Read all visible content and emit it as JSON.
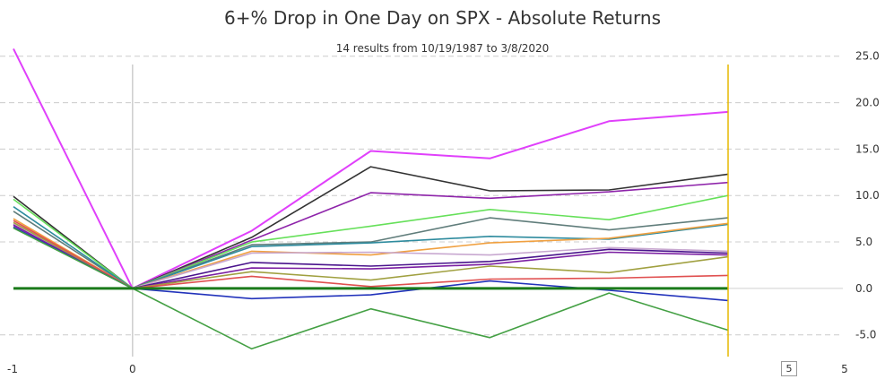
{
  "chart_data": {
    "type": "line",
    "title": "6+% Drop in One Day on SPX - Absolute Returns",
    "subtitle": "14 results from 10/19/1987 to 3/8/2020",
    "x": [
      -1,
      0,
      1,
      2,
      3,
      4,
      5
    ],
    "x_ticks": [
      "-1",
      "0",
      "5"
    ],
    "y_ticks": [
      "25.0",
      "20.0",
      "15.0",
      "10.0",
      "5.0",
      "0.0",
      "-5.0"
    ],
    "ylim": [
      -8.5,
      27
    ],
    "grid": "horizontal-dashed",
    "marker_x": 5,
    "series": [
      {
        "color": "#e040fb",
        "values": [
          25.8,
          0,
          6.2,
          14.8,
          14.0,
          18.0,
          19.0
        ]
      },
      {
        "color": "#333333",
        "values": [
          9.9,
          0,
          5.5,
          13.1,
          10.5,
          10.6,
          12.3
        ]
      },
      {
        "color": "#8e24aa",
        "values": [
          6.9,
          0,
          5.2,
          10.3,
          9.7,
          10.4,
          11.4
        ]
      },
      {
        "color": "#66e05a",
        "values": [
          9.6,
          0,
          5.0,
          6.7,
          8.5,
          7.4,
          10.0
        ]
      },
      {
        "color": "#607d7b",
        "values": [
          8.3,
          0,
          4.7,
          5.0,
          7.6,
          6.3,
          7.6
        ]
      },
      {
        "color": "#2e8b9e",
        "values": [
          8.8,
          0,
          4.5,
          4.9,
          5.6,
          5.3,
          6.9
        ]
      },
      {
        "color": "#f0a040",
        "values": [
          7.5,
          0,
          4.0,
          3.6,
          4.9,
          5.4,
          7.0
        ]
      },
      {
        "color": "#c8a8d0",
        "values": [
          7.0,
          0,
          3.8,
          3.9,
          3.6,
          4.4,
          4.0
        ]
      },
      {
        "color": "#4a148c",
        "values": [
          6.6,
          0,
          2.8,
          2.4,
          2.9,
          4.2,
          3.8
        ]
      },
      {
        "color": "#7b1fa2",
        "values": [
          6.8,
          0,
          2.2,
          2.1,
          2.6,
          3.9,
          3.6
        ]
      },
      {
        "color": "#a0a040",
        "values": [
          7.1,
          0,
          1.8,
          0.9,
          2.4,
          1.7,
          3.4
        ]
      },
      {
        "color": "#e05050",
        "values": [
          7.3,
          0,
          1.3,
          0.2,
          1.0,
          1.1,
          1.4
        ]
      },
      {
        "color": "#2233bb",
        "values": [
          6.6,
          0,
          -1.1,
          -0.7,
          0.8,
          -0.2,
          -1.3
        ]
      },
      {
        "color": "#44a044",
        "values": [
          6.5,
          0,
          -6.5,
          -2.2,
          -5.3,
          -0.5,
          -4.5
        ]
      }
    ],
    "zero_line_color": "#1a7a1a",
    "marker_line_color": "#e6b800"
  },
  "range_box": "5"
}
